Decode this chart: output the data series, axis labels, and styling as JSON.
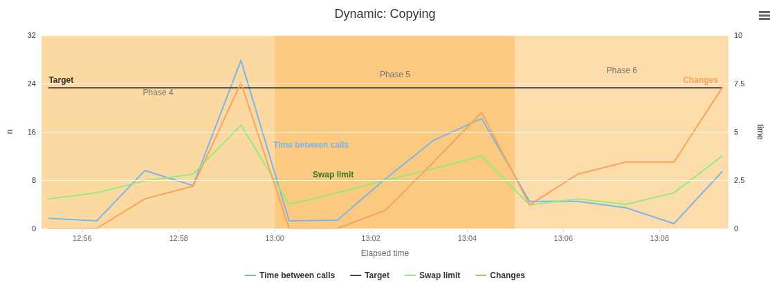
{
  "chart_data": {
    "type": "line",
    "title": "Dynamic: Copying",
    "xlabel": "Elapsed time",
    "ylabel": "n",
    "y2label": "time",
    "x": [
      12.9217,
      12.9383,
      12.955,
      12.9717,
      12.9883,
      13.005,
      13.0217,
      13.0383,
      13.055,
      13.0717,
      13.0883,
      13.105,
      13.1217,
      13.1383,
      13.155
    ],
    "series": [
      {
        "name": "Time between calls",
        "color": "#7cb5ec",
        "axis": "y2",
        "values": [
          0.53,
          0.39,
          3.0,
          2.22,
          8.7,
          0.39,
          0.43,
          2.56,
          4.56,
          5.69,
          1.4,
          1.4,
          1.07,
          0.25,
          2.94
        ]
      },
      {
        "name": "Target",
        "color": "#434348",
        "values": [
          23.3,
          23.3,
          23.3,
          23.3,
          23.3,
          23.3,
          23.3,
          23.3,
          23.3,
          23.3,
          23.3,
          23.3,
          23.3,
          23.3,
          23.3
        ]
      },
      {
        "name": "Swap limit",
        "color": "#90ed7d",
        "values": [
          4.9,
          5.9,
          7.9,
          9.0,
          17.1,
          4.0,
          5.9,
          8.0,
          9.9,
          12.0,
          3.9,
          4.9,
          4.0,
          5.9,
          12.0
        ]
      },
      {
        "name": "Changes",
        "color": "#f7a35c",
        "values": [
          0,
          0,
          4.9,
          7.0,
          24.1,
          0,
          0,
          3.0,
          11.0,
          19.2,
          3.9,
          9.0,
          11.0,
          11.0,
          23.3
        ]
      }
    ],
    "xlim": [
      12.9192,
      13.1572
    ],
    "xticks": [
      {
        "value": 12.9333,
        "label": "12:56"
      },
      {
        "value": 12.9667,
        "label": "12:58"
      },
      {
        "value": 13,
        "label": "13:00"
      },
      {
        "value": 13.0333,
        "label": "13:02"
      },
      {
        "value": 13.0667,
        "label": "13:04"
      },
      {
        "value": 13.1,
        "label": "13:06"
      },
      {
        "value": 13.1333,
        "label": "13:08"
      }
    ],
    "ylim": [
      0,
      32
    ],
    "yticks": [
      0,
      8,
      16,
      24,
      32
    ],
    "y2lim": [
      0,
      10
    ],
    "y2ticks": [
      0,
      2.5,
      5,
      7.5,
      10
    ],
    "bands": [
      {
        "axis": "x",
        "from": 12.9192,
        "to": 13,
        "label": "Phase 4",
        "color": "#fcd9a0"
      },
      {
        "axis": "x",
        "from": 13,
        "to": 13.0833,
        "label": "Phase 5",
        "color": "#fbc97f"
      },
      {
        "axis": "x",
        "from": 13.0833,
        "to": 13.1572,
        "label": "Phase 6",
        "color": "#fcdcaa"
      }
    ],
    "grid": "y",
    "legend": "bottom",
    "marker": "none",
    "line_style": "solid"
  }
}
